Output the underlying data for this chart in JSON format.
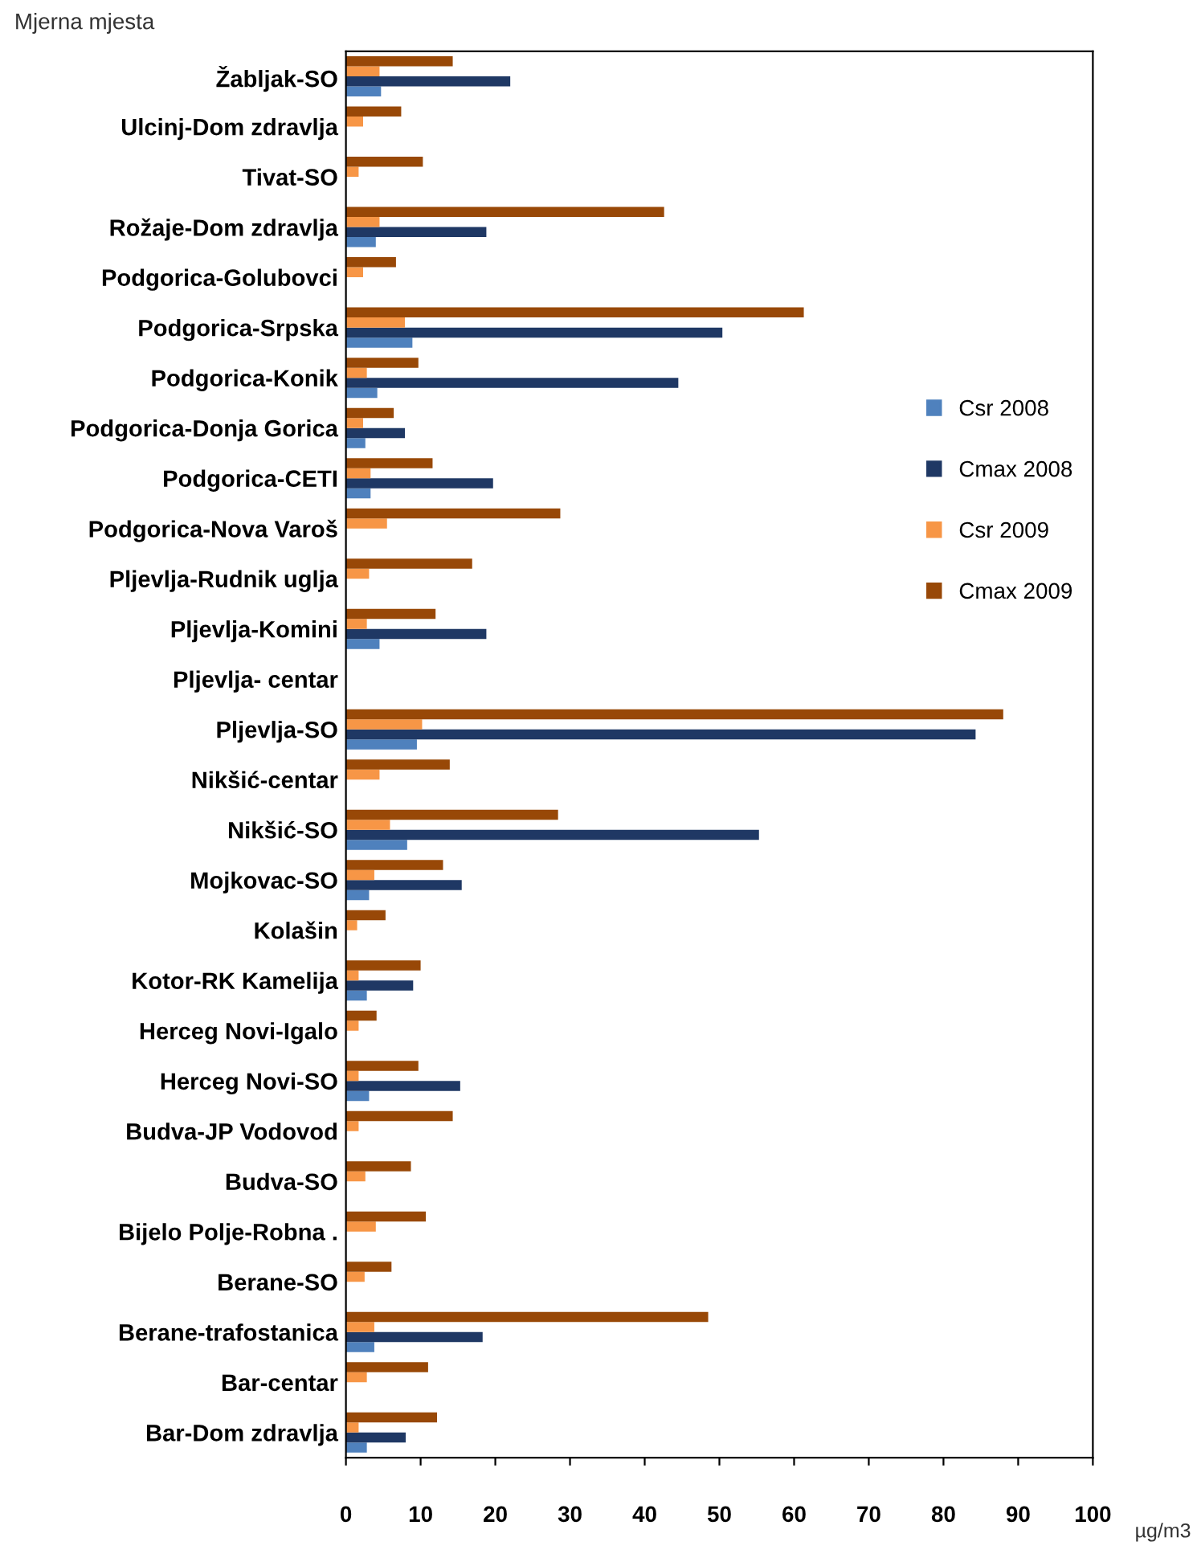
{
  "chart_data": {
    "type": "bar",
    "orientation": "horizontal",
    "ylabel": "Mjerna mjesta",
    "xlabel": "µg/m3",
    "categories": [
      "Žabljak-SO",
      "Ulcinj-Dom zdravlja",
      "Tivat-SO",
      "Rožaje-Dom zdravlja",
      "Podgorica-Golubovci",
      "Podgorica-Srpska",
      "Podgorica-Konik",
      "Podgorica-Donja Gorica",
      "Podgorica-CETI",
      "Podgorica-Nova Varoš",
      "Pljevlja-Rudnik uglja",
      "Pljevlja-Komini",
      "Pljevlja- centar",
      "Pljevlja-SO",
      "Nikšić-centar",
      "Nikšić-SO",
      "Mojkovac-SO",
      "Kolašin",
      "Kotor-RK Kamelija",
      "Herceg Novi-Igalo",
      "Herceg Novi-SO",
      "Budva-JP Vodovod",
      "Budva-SO",
      "Bijelo Polje-Robna .",
      "Berane-SO",
      "Berane-trafostanica",
      "Bar-centar",
      "Bar-Dom zdravlja"
    ],
    "series": [
      {
        "name": "Csr 2008",
        "color": "#4f81bd",
        "values": [
          4.7,
          null,
          null,
          4,
          null,
          8.9,
          4.2,
          2.6,
          3.3,
          null,
          null,
          4.5,
          null,
          9.5,
          null,
          8.2,
          3.1,
          null,
          2.8,
          null,
          3.1,
          null,
          null,
          null,
          null,
          3.8,
          null,
          2.8
        ]
      },
      {
        "name": "Cmax 2008",
        "color": "#1f3864",
        "values": [
          22,
          null,
          null,
          18.8,
          null,
          50.4,
          44.5,
          7.9,
          19.7,
          null,
          null,
          18.8,
          null,
          84.3,
          null,
          55.3,
          15.5,
          null,
          9,
          null,
          15.3,
          null,
          null,
          null,
          null,
          18.3,
          null,
          8
        ]
      },
      {
        "name": "Csr 2009",
        "color": "#f79646",
        "values": [
          4.5,
          2.3,
          1.7,
          4.5,
          2.3,
          7.9,
          2.8,
          2.3,
          3.3,
          5.5,
          3.1,
          2.8,
          null,
          10.2,
          4.5,
          5.9,
          3.8,
          1.5,
          1.7,
          1.7,
          1.7,
          1.7,
          2.6,
          4,
          2.5,
          3.8,
          2.8,
          1.7
        ]
      },
      {
        "name": "Cmax 2009",
        "color": "#984807",
        "values": [
          14.3,
          7.4,
          10.3,
          42.6,
          6.7,
          61.3,
          9.7,
          6.4,
          11.6,
          28.7,
          16.9,
          12,
          null,
          88,
          13.9,
          28.4,
          13,
          5.3,
          10,
          4.1,
          9.7,
          14.3,
          8.7,
          10.7,
          6.1,
          48.5,
          11,
          12.2
        ]
      }
    ],
    "xlim": [
      0,
      100
    ],
    "xticks": [
      0,
      10,
      20,
      30,
      40,
      50,
      60,
      70,
      80,
      90,
      100
    ],
    "grid": false,
    "legend": "right"
  }
}
